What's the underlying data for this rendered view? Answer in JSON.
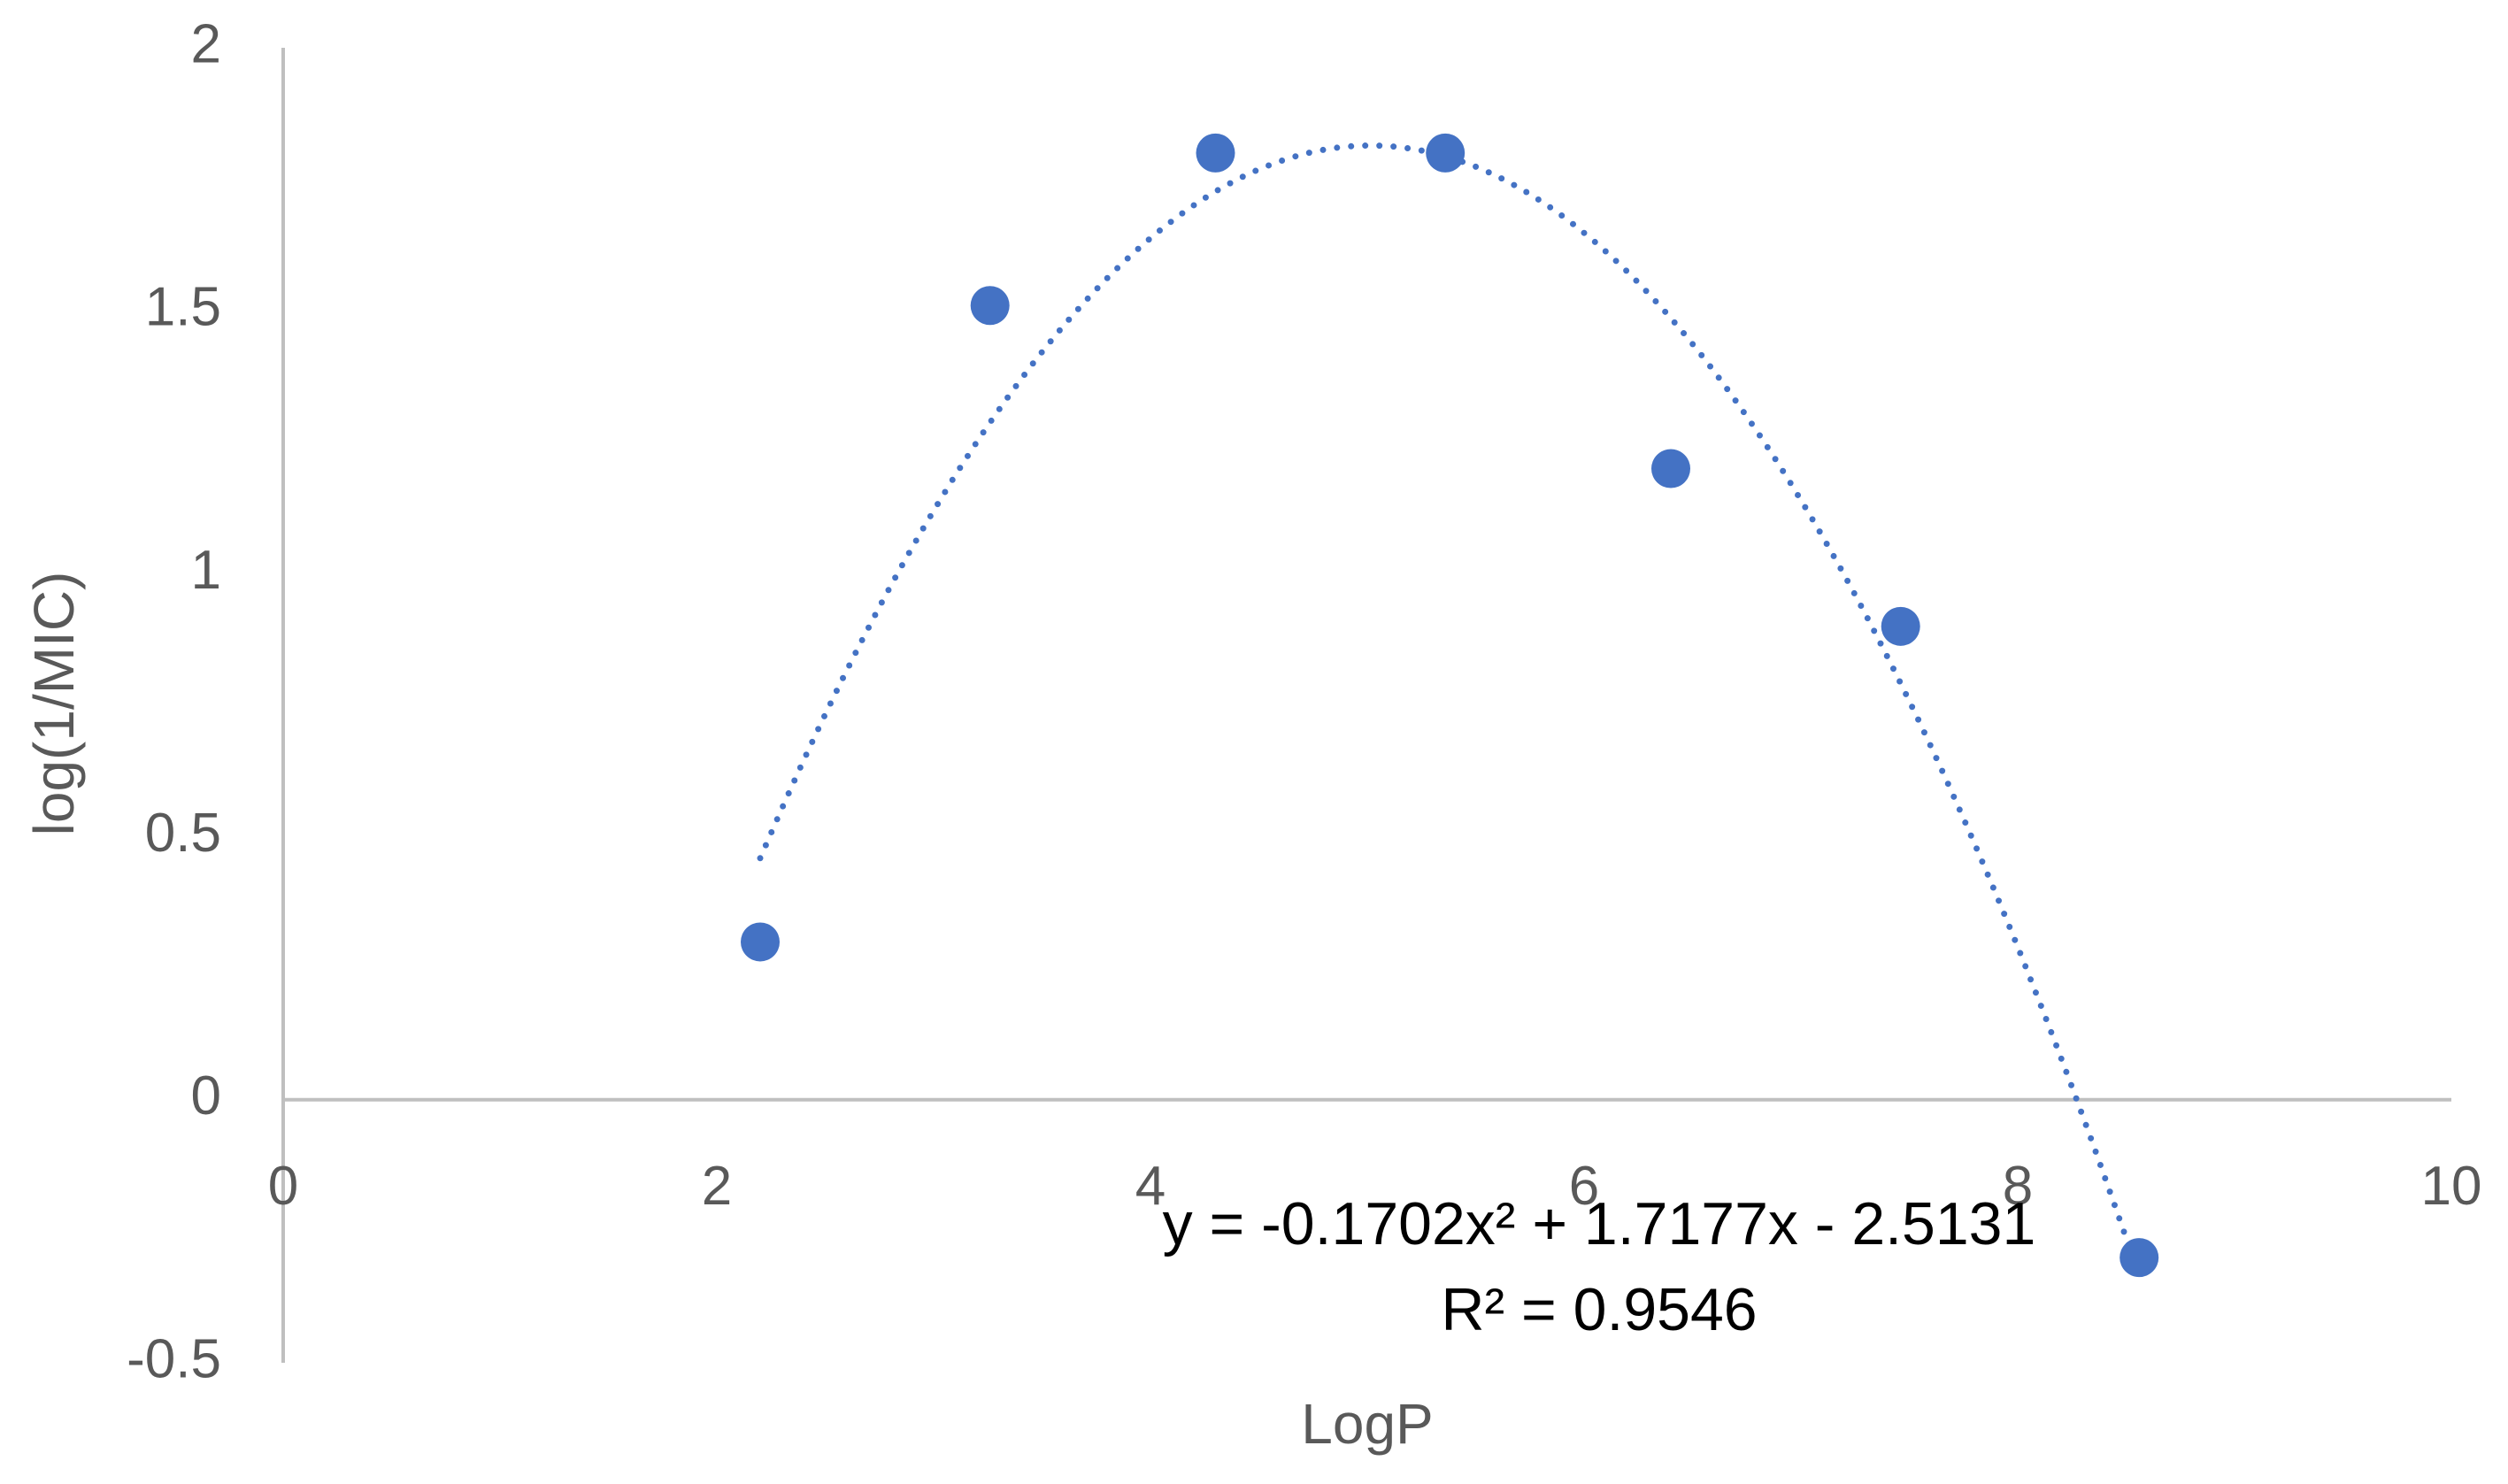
{
  "chart_data": {
    "type": "scatter",
    "x": [
      2.2,
      3.26,
      4.3,
      5.36,
      6.4,
      7.46,
      8.56
    ],
    "values": [
      0.3,
      1.51,
      1.8,
      1.8,
      1.2,
      0.9,
      -0.3
    ],
    "color": "#4472c4",
    "xlabel": "LogP",
    "ylabel": "log(1/MIC)",
    "xlim": [
      0,
      10
    ],
    "xticks": [
      0,
      2,
      4,
      6,
      8,
      10
    ],
    "ylim": [
      -0.5,
      2
    ],
    "yticks": [
      -0.5,
      0,
      0.5,
      1,
      1.5,
      2
    ],
    "trendline": "polynomial",
    "annotations": [
      "y = -0.1702x² + 1.7177x - 2.5131",
      "R² = 0.9546"
    ]
  }
}
